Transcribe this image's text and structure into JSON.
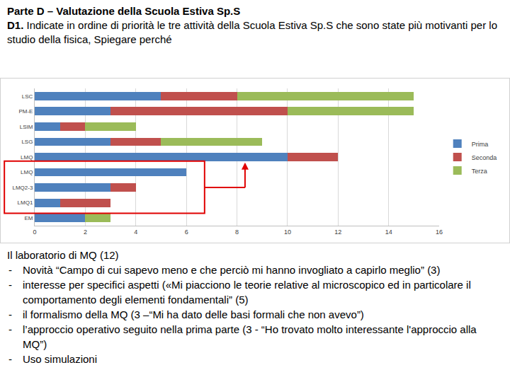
{
  "header": {
    "title": "Parte D – Valutazione della Scuola Estiva Sp.S",
    "question_label": "D1.",
    "question": "Indicate in ordine di priorità le tre attività della Scuola Estiva Sp.S che sono state più motivanti per lo studio della fisica, Spiegare perché"
  },
  "chart_data": {
    "type": "bar",
    "orientation": "horizontal",
    "stacked": true,
    "grid": true,
    "legend": "right",
    "categories": [
      "LSC",
      "PM-E",
      "LSIM",
      "LSG",
      "LMQ",
      "LMQ",
      "LMQ2-3",
      "LMQ1",
      "EM"
    ],
    "series": [
      {
        "name": "Prima",
        "color": "#4f81bd",
        "values": [
          5,
          3,
          1,
          3,
          10,
          6,
          3,
          1,
          2
        ]
      },
      {
        "name": "Seconda",
        "color": "#c0504d",
        "values": [
          3,
          7,
          1,
          2,
          2,
          0,
          1,
          2,
          0
        ]
      },
      {
        "name": "Terza",
        "color": "#9bbb59",
        "values": [
          7,
          5,
          2,
          4,
          0,
          0,
          0,
          0,
          1
        ]
      }
    ],
    "xlim": [
      0,
      16
    ],
    "xticks": [
      0,
      2,
      4,
      6,
      8,
      10,
      12,
      14,
      16
    ]
  },
  "notes": {
    "heading": "Il laboratorio di MQ (12)",
    "items": [
      "Novità “Campo di cui sapevo meno e che perciò mi hanno invogliato a capirlo meglio” (3)",
      "interesse per specifici aspetti («Mi piacciono le teorie relative al microscopico ed in particolare il comportamento degli elementi fondamentali” (5)",
      "il formalismo della MQ (3 –“Mi ha dato delle basi formali che non avevo”)",
      "l’approccio operativo seguito nella prima parte (3 - “Ho trovato molto interessante l'approccio alla MQ”)",
      "Uso simulazioni"
    ]
  }
}
